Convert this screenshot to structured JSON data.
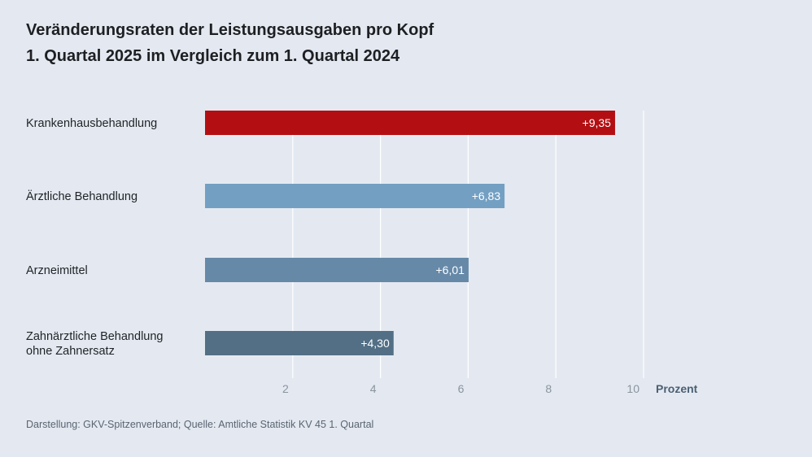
{
  "title": "Veränderungsraten der Leistungsausgaben pro Kopf",
  "subtitle": "1. Quartal 2025 im Vergleich zum 1. Quartal 2024",
  "source": "Darstellung: GKV-Spitzenverband; Quelle: Amtliche Statistik KV 45 1. Quartal",
  "colors": {
    "background": "#e4e9f1",
    "gridline": "#ffffff",
    "tick_label": "#8a939d",
    "unit_label": "#4b5f73",
    "bar_label": "#ffffff"
  },
  "chart_data": {
    "type": "bar",
    "orientation": "horizontal",
    "categories": [
      [
        "Krankenhausbehandlung"
      ],
      [
        "Ärztliche Behandlung"
      ],
      [
        "Arzneimittel"
      ],
      [
        "Zahnärztliche Behandlung",
        "ohne Zahnersatz"
      ]
    ],
    "values": [
      9.35,
      6.83,
      6.01,
      4.3
    ],
    "value_labels": [
      "+9,35",
      "+6,83",
      "+6,01",
      "+4,30"
    ],
    "bar_colors": [
      "#b30f12",
      "#739fc3",
      "#6689a8",
      "#526f86"
    ],
    "xlim": [
      0,
      10
    ],
    "xticks": [
      2,
      4,
      6,
      8,
      10
    ],
    "xtick_labels": [
      "2",
      "4",
      "6",
      "8",
      "10"
    ],
    "xlabel": "Prozent",
    "grid": true
  }
}
